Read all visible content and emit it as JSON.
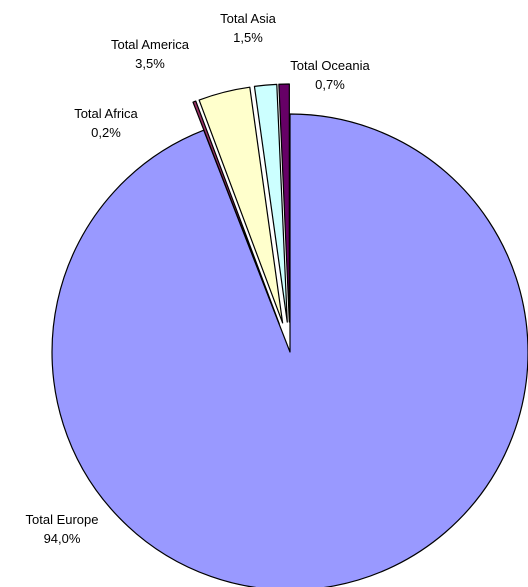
{
  "chart_data": {
    "type": "pie",
    "variant": "exploded-3d-look",
    "title": "",
    "slices": [
      {
        "name": "Total Europe",
        "label_value": "94,0%",
        "value": 94.0,
        "color": "#9999ff"
      },
      {
        "name": "Total Africa",
        "label_value": "0,2%",
        "value": 0.2,
        "color": "#993366"
      },
      {
        "name": "Total America",
        "label_value": "3,5%",
        "value": 3.5,
        "color": "#ffffcc"
      },
      {
        "name": "Total Asia",
        "label_value": "1,5%",
        "value": 1.5,
        "color": "#ccffff"
      },
      {
        "name": "Total Oceania",
        "label_value": "0,7%",
        "value": 0.7,
        "color": "#660066"
      }
    ],
    "start_angle_position": "12 o'clock",
    "direction": "clockwise",
    "legend": "none",
    "label_position": "outside"
  }
}
